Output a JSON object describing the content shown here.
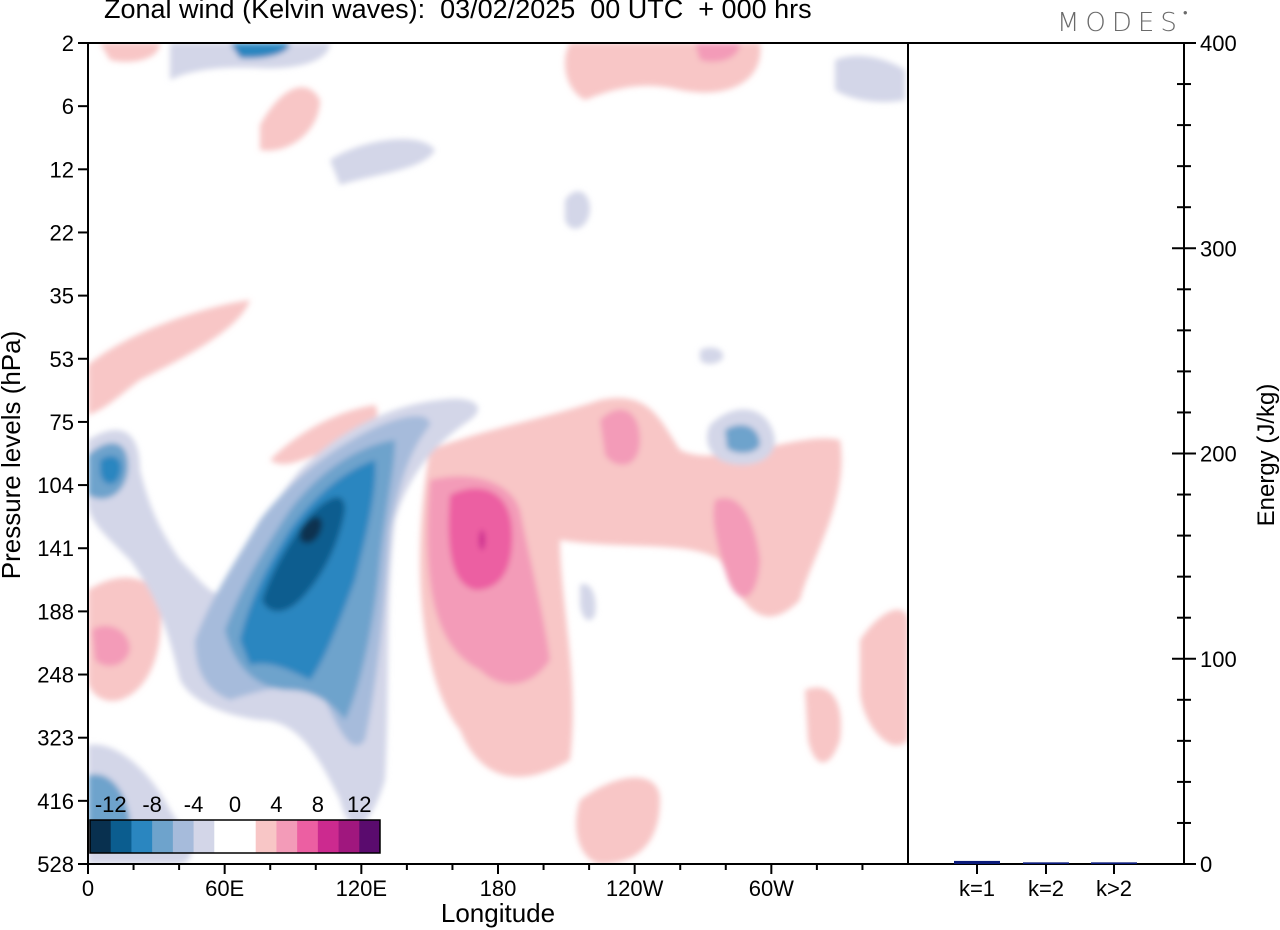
{
  "title": "Zonal wind (Kelvin waves):  03/02/2025  00 UTC  + 000 hrs",
  "logo": "MODES",
  "chart_data": [
    {
      "type": "heatmap",
      "xlabel": "Longitude",
      "ylabel": "Pressure levels (hPa)",
      "x_ticks": [
        "0",
        "60E",
        "120E",
        "180",
        "120W",
        "60W"
      ],
      "y_ticks": [
        "2",
        "6",
        "12",
        "22",
        "35",
        "53",
        "75",
        "104",
        "141",
        "188",
        "248",
        "323",
        "416",
        "528"
      ],
      "colorbar": {
        "labels": [
          "-12",
          "-8",
          "-4",
          "0",
          "4",
          "8",
          "12"
        ],
        "colors": [
          "#08304f",
          "#0b5d8f",
          "#2a86c0",
          "#6ea3cc",
          "#a6bbdb",
          "#d3d6e8",
          "#ffffff",
          "#ffffff",
          "#f8c6c6",
          "#f39bb8",
          "#ec5fa2",
          "#cc2a8f",
          "#a0177e",
          "#5a0b6e"
        ]
      },
      "features": [
        {
          "sign": "negative",
          "peak_level": -12,
          "lon": [
            85,
            125
          ],
          "p_hpa": [
            75,
            330
          ]
        },
        {
          "sign": "negative",
          "peak_level": -6,
          "lon": [
            0,
            30
          ],
          "p_hpa": [
            85,
            140
          ]
        },
        {
          "sign": "positive",
          "peak_level": 10,
          "lon": [
            145,
            190
          ],
          "p_hpa": [
            104,
            330
          ]
        },
        {
          "sign": "positive",
          "peak_level": 6,
          "lon": [
            260,
            290
          ],
          "p_hpa": [
            110,
            200
          ]
        }
      ]
    },
    {
      "type": "bar",
      "categories": [
        "k=1",
        "k=2",
        "k>2"
      ],
      "values": [
        1.5,
        0.8,
        0.8
      ],
      "ylabel": "Energy (J/kg)",
      "y_ticks": [
        "0",
        "100",
        "200",
        "300",
        "400"
      ],
      "ylim": [
        0,
        400
      ],
      "bar_color": "#0a1a7a"
    }
  ]
}
